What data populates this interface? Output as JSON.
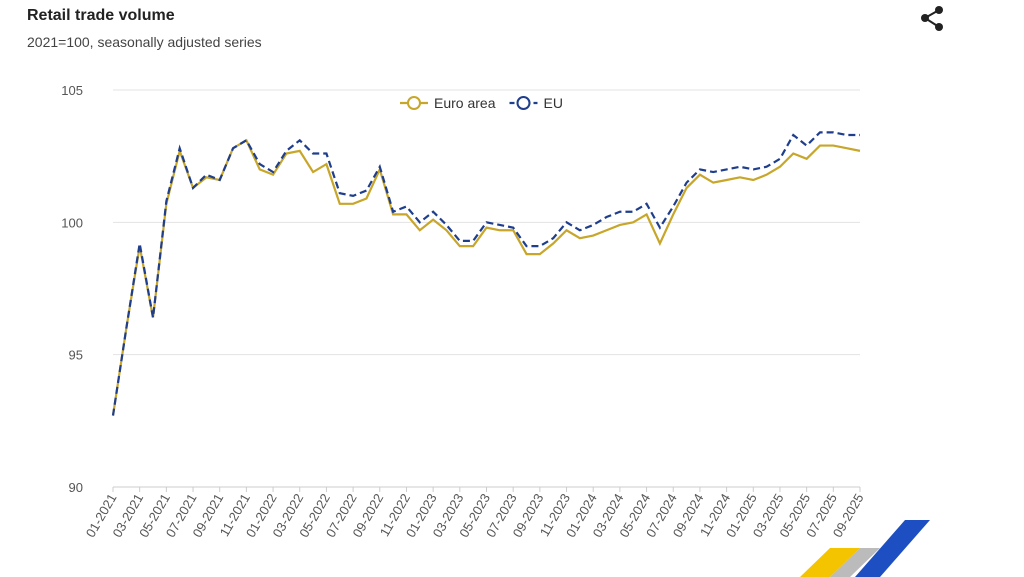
{
  "chart_data": {
    "type": "line",
    "title": "Retail trade volume",
    "subtitle": "2021=100, seasonally adjusted series",
    "categories": [
      "01-2021",
      null,
      "03-2021",
      null,
      "05-2021",
      null,
      "07-2021",
      null,
      "09-2021",
      null,
      "11-2021",
      null,
      "01-2022",
      null,
      "03-2022",
      null,
      "05-2022",
      null,
      "07-2022",
      null,
      "09-2022",
      null,
      "11-2022",
      null,
      "01-2023",
      null,
      "03-2023",
      null,
      "05-2023",
      null,
      "07-2023",
      null,
      "09-2023",
      null,
      "11-2023",
      null,
      "01-2024",
      null,
      "03-2024",
      null,
      "05-2024",
      null,
      "07-2024",
      null,
      "09-2024",
      null,
      "11-2024",
      null,
      "01-2025",
      null,
      "03-2025",
      null,
      "05-2025",
      null,
      "07-2025",
      null,
      "09-2025"
    ],
    "series": [
      {
        "name": "Euro area",
        "color": "#c8a62a",
        "dashed": false,
        "values": [
          92.7,
          96.0,
          99.1,
          96.4,
          100.7,
          102.7,
          101.3,
          101.7,
          101.6,
          102.8,
          103.1,
          102.0,
          101.8,
          102.6,
          102.7,
          101.9,
          102.2,
          100.7,
          100.7,
          100.9,
          102.0,
          100.3,
          100.3,
          99.7,
          100.1,
          99.7,
          99.1,
          99.1,
          99.8,
          99.7,
          99.7,
          98.8,
          98.8,
          99.2,
          99.7,
          99.4,
          99.5,
          99.7,
          99.9,
          100.0,
          100.3,
          99.2,
          100.3,
          101.3,
          101.8,
          101.5,
          101.6,
          101.7,
          101.6,
          101.8,
          102.1,
          102.6,
          102.4,
          102.9,
          102.9,
          102.8,
          102.7
        ]
      },
      {
        "name": "EU",
        "color": "#1f3e8c",
        "dashed": true,
        "values": [
          92.7,
          96.0,
          99.2,
          96.4,
          100.8,
          102.8,
          101.3,
          101.8,
          101.6,
          102.8,
          103.1,
          102.2,
          101.9,
          102.7,
          103.1,
          102.6,
          102.6,
          101.1,
          101.0,
          101.2,
          102.1,
          100.4,
          100.6,
          100.0,
          100.4,
          99.9,
          99.3,
          99.3,
          100.0,
          99.9,
          99.8,
          99.1,
          99.1,
          99.4,
          100.0,
          99.7,
          99.9,
          100.2,
          100.4,
          100.4,
          100.7,
          99.8,
          100.6,
          101.5,
          102.0,
          101.9,
          102.0,
          102.1,
          102.0,
          102.1,
          102.4,
          103.3,
          102.9,
          103.4,
          103.4,
          103.3,
          103.3
        ]
      }
    ],
    "ylim": [
      90,
      105
    ],
    "yticks": [
      90,
      95,
      100,
      105
    ],
    "grid": true,
    "legend": "top"
  }
}
